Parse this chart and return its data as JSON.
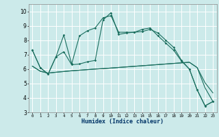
{
  "xlabel": "Humidex (Indice chaleur)",
  "background_color": "#cceaea",
  "grid_color": "#ffffff",
  "line_color": "#1a6e5e",
  "xlim": [
    -0.5,
    23.5
  ],
  "ylim": [
    3.0,
    10.5
  ],
  "xticks": [
    0,
    1,
    2,
    3,
    4,
    5,
    6,
    7,
    8,
    9,
    10,
    11,
    12,
    13,
    14,
    15,
    16,
    17,
    18,
    19,
    20,
    21,
    22,
    23
  ],
  "yticks": [
    3,
    4,
    5,
    6,
    7,
    8,
    9,
    10
  ],
  "series0": [
    7.3,
    6.1,
    5.65,
    6.85,
    8.35,
    6.35,
    8.3,
    8.65,
    8.85,
    9.55,
    9.7,
    8.55,
    8.55,
    8.55,
    8.75,
    8.85,
    8.3,
    7.8,
    7.3,
    6.55,
    6.0,
    4.55,
    3.45,
    3.75
  ],
  "series1": [
    7.3,
    6.1,
    5.65,
    6.85,
    7.2,
    6.3,
    6.35,
    6.5,
    6.6,
    9.4,
    9.9,
    8.4,
    8.5,
    8.55,
    8.6,
    8.75,
    8.5,
    8.0,
    7.5,
    6.6,
    6.0,
    4.55,
    3.45,
    3.75
  ],
  "series2": [
    6.2,
    5.85,
    5.72,
    5.78,
    5.83,
    5.88,
    5.92,
    5.96,
    6.0,
    6.03,
    6.07,
    6.11,
    6.15,
    6.19,
    6.23,
    6.27,
    6.31,
    6.35,
    6.39,
    6.43,
    6.47,
    6.1,
    5.05,
    4.35
  ],
  "series3": [
    6.2,
    5.85,
    5.72,
    5.78,
    5.83,
    5.88,
    5.92,
    5.96,
    6.0,
    6.03,
    6.07,
    6.11,
    6.15,
    6.19,
    6.23,
    6.27,
    6.31,
    6.35,
    6.39,
    6.43,
    6.47,
    6.1,
    4.7,
    3.75
  ]
}
